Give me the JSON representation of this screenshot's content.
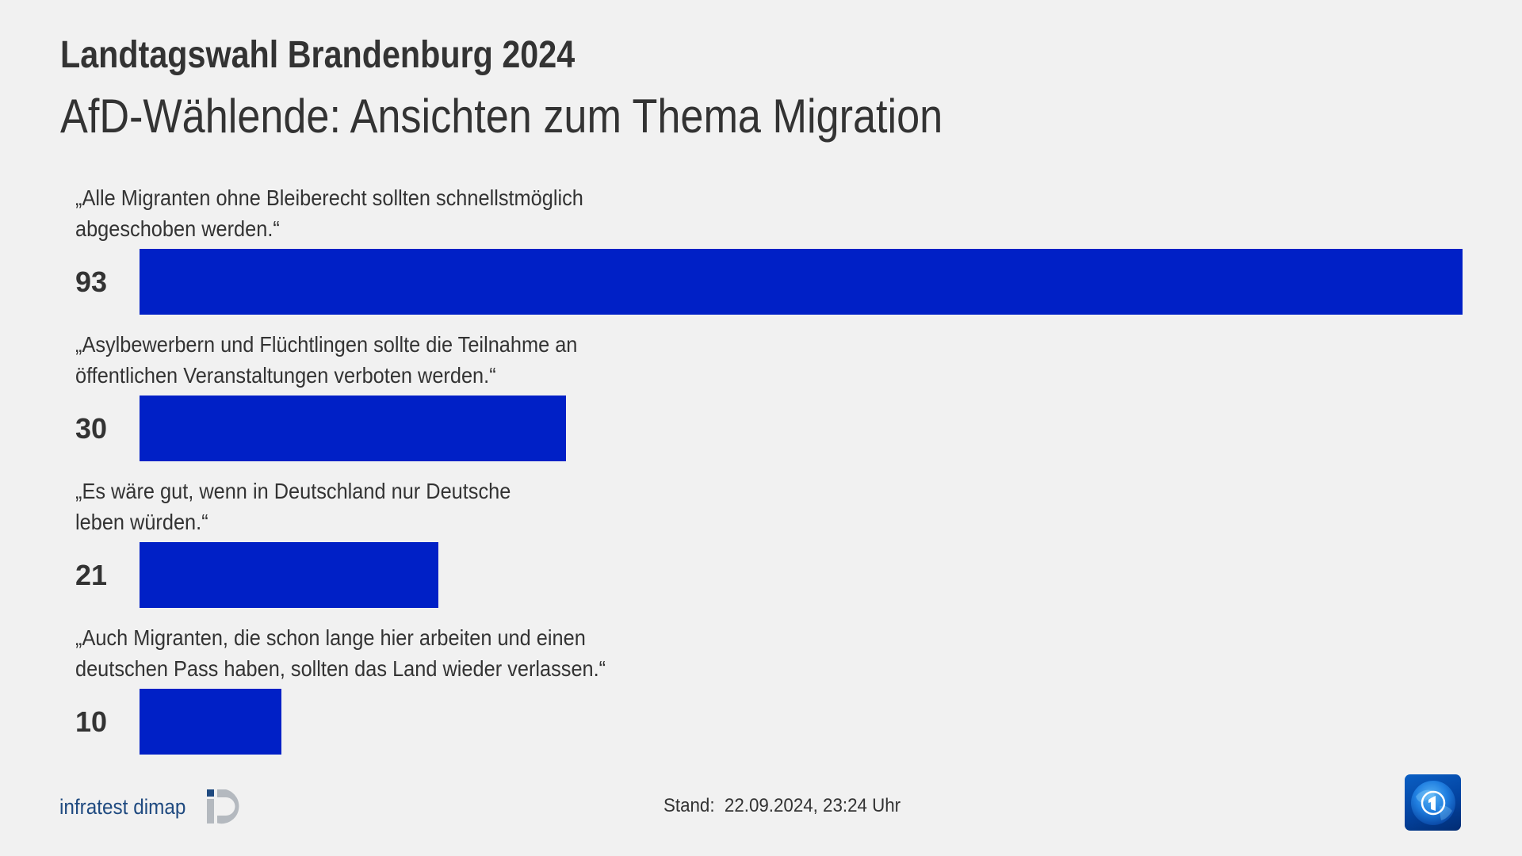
{
  "header": {
    "title": "Landtagswahl Brandenburg 2024",
    "subtitle": "AfD-Wählende: Ansichten zum Thema Migration"
  },
  "chart_data": {
    "type": "bar",
    "orientation": "horizontal",
    "title": "Landtagswahl Brandenburg 2024",
    "subtitle": "AfD-Wählende: Ansichten zum Thema Migration",
    "xlabel": "",
    "ylabel": "",
    "unit": "percent",
    "grid": false,
    "legend": null,
    "bar_color": "#0020c6",
    "categories": [
      "„Alle Migranten ohne Bleiberecht sollten schnellstmöglich abgeschoben werden.“",
      "„Asylbewerbern und Flüchtlingen sollte die Teilnahme an öffentlichen Veranstaltungen verboten werden.“",
      "„Es wäre gut, wenn in Deutschland nur Deutsche leben würden.“",
      "„Auch Migranten, die schon lange hier arbeiten und einen deutschen Pass haben, sollten das Land wieder verlassen.“"
    ],
    "values": [
      93,
      30,
      21,
      10
    ],
    "xlim": [
      0,
      93
    ]
  },
  "rows": [
    {
      "line1": "„Alle Migranten ohne Bleiberecht sollten schnellstmöglich",
      "line2": "abgeschoben werden.“",
      "value": "93",
      "pct": 93
    },
    {
      "line1": "„Asylbewerbern und Flüchtlingen sollte die Teilnahme an",
      "line2": "öffentlichen Veranstaltungen verboten werden.“",
      "value": "30",
      "pct": 30
    },
    {
      "line1": "„Es wäre gut, wenn in Deutschland nur Deutsche",
      "line2": "leben würden.“",
      "value": "21",
      "pct": 21
    },
    {
      "line1": "„Auch Migranten, die schon lange hier arbeiten und einen",
      "line2": "deutschen Pass haben, sollten das Land wieder verlassen.“",
      "value": "10",
      "pct": 10
    }
  ],
  "footer": {
    "source_logo_text": "infratest dimap",
    "source_logo_icon": "infratest-dimap-logo-icon",
    "stand": "Stand:  22.09.2024, 23:24 Uhr",
    "broadcaster_logo_icon": "tagesschau-logo-icon"
  },
  "colors": {
    "background": "#f1f1f1",
    "text": "#333333",
    "bar": "#0020c6",
    "dimap_blue": "#1f4a80",
    "dimap_gray": "#b4b9bf"
  }
}
